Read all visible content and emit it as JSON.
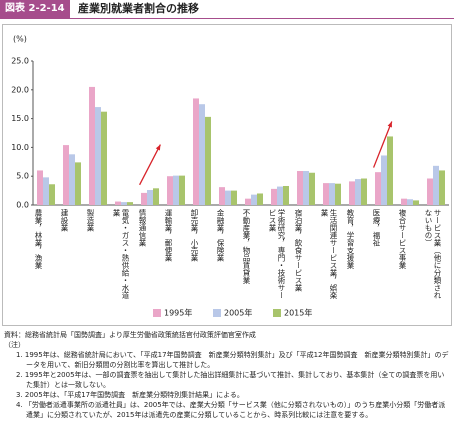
{
  "header": {
    "label": "図表 2-2-14",
    "title": "産業別就業者割合の推移"
  },
  "chart_data": {
    "type": "bar",
    "y_unit": "(%)",
    "categories": [
      "農業，林業，漁業",
      "建設業",
      "製造業",
      "電気・ガス・熱供給・水道業",
      "情報通信業",
      "運輸業，郵便業",
      "卸売業，小売業",
      "金融業，保険業",
      "不動産業，物品賃貸業",
      "学術研究，専門・技術サービス業",
      "宿泊業，飲食サービス業",
      "生活関連サービス業，娯楽業",
      "教育，学習支援業",
      "医療，福祉",
      "複合サービス事業",
      "サービス業（他に分類されないもの）"
    ],
    "series": [
      {
        "name": "1995年",
        "color": "#eaa6c8",
        "values": [
          6.0,
          10.4,
          20.5,
          0.6,
          2.1,
          5.0,
          18.5,
          3.1,
          1.1,
          2.8,
          5.9,
          3.8,
          4.1,
          5.7,
          1.1,
          4.6
        ]
      },
      {
        "name": "2005年",
        "color": "#b9c8e8",
        "values": [
          4.8,
          8.8,
          17.0,
          0.5,
          2.6,
          5.1,
          17.5,
          2.5,
          1.8,
          3.2,
          5.9,
          3.8,
          4.5,
          8.6,
          1.0,
          6.8
        ]
      },
      {
        "name": "2015年",
        "color": "#a8c46c",
        "values": [
          3.6,
          7.4,
          16.2,
          0.5,
          2.9,
          5.1,
          15.3,
          2.5,
          2.0,
          3.3,
          5.6,
          3.7,
          4.6,
          11.9,
          0.8,
          6.0
        ]
      }
    ],
    "ylim": [
      0,
      25
    ],
    "yticks": [
      {
        "value": 0,
        "label": "0.0"
      },
      {
        "value": 5,
        "label": "5.0"
      },
      {
        "value": 10,
        "label": "10.0"
      },
      {
        "value": 15,
        "label": "15.0"
      },
      {
        "value": 20,
        "label": "20.0"
      },
      {
        "value": 25,
        "label": "25.0"
      }
    ],
    "grid": false,
    "legend": "bottom"
  },
  "notes": {
    "source": "資料：総務省統計局「国勢調査」より厚生労働省政策統括官付政策評価官室作成",
    "label": "（注）",
    "items": [
      "1. 1995年は、総務省統計局において、「平成17年国勢調査　新産業分類特別集計」及び「平成12年国勢調査　新産業分類特別集計」のデータを用いて、新旧分類間の分割比率を算出して推計した。",
      "2. 1995年と2005年は、一部の調査票を抽出して集計した抽出詳細集計に基づいて推計、集計しており、基本集計（全ての調査票を用いた集計）とは一致しない。",
      "3. 2005年は、「平成17年国勢調査　新産業分類特別集計結果」による。",
      "4. 「労働者派遣事業所の派遣社員」は、2005年では、産業大分類「サービス業（他に分類されないもの）」のうち産業小分類「労働者派遣業」に分類されていたが、2015年は派遣先の産業に分類していることから、時系列比較には注意を要する。"
    ]
  }
}
